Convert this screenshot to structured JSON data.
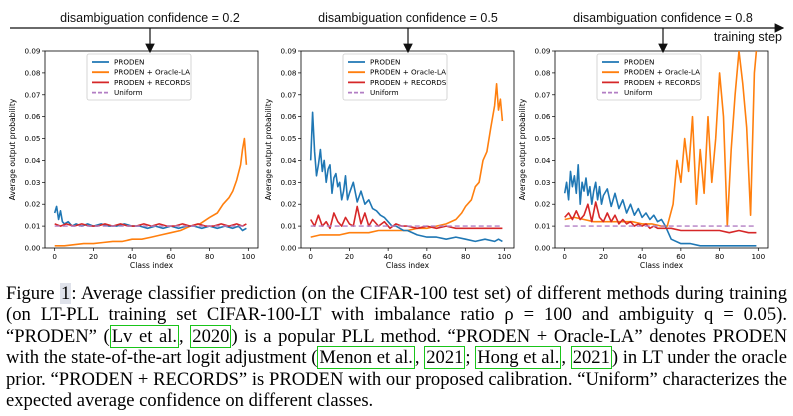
{
  "timeline": {
    "labels": [
      "disambiguation confidence = 0.2",
      "disambiguation confidence = 0.5",
      "disambiguation confidence = 0.8"
    ],
    "arrow_label": "training step"
  },
  "colors": {
    "proden": "#1f77b4",
    "oracle": "#ff7f0e",
    "records": "#d62728",
    "uniform": "#b27ec4"
  },
  "chart_data": [
    {
      "type": "line",
      "title": "",
      "xlabel": "Class index",
      "ylabel": "Average output probability",
      "xlim": [
        -5,
        105
      ],
      "ylim": [
        0,
        0.09
      ],
      "xticks": [
        0,
        20,
        40,
        60,
        80,
        100
      ],
      "yticks": [
        "0.00",
        "0.01",
        "0.02",
        "0.03",
        "0.04",
        "0.05",
        "0.06",
        "0.07",
        "0.08",
        "0.09"
      ],
      "legend": {
        "position": "top-center",
        "entries": [
          "PRODEN",
          "PRODEN + Oracle-LA",
          "PRODEN + RECORDS",
          "Uniform"
        ]
      },
      "series": [
        {
          "name": "PRODEN",
          "color": "#1f77b4",
          "x": [
            0,
            1,
            2,
            3,
            4,
            5,
            7,
            9,
            11,
            14,
            17,
            20,
            24,
            28,
            32,
            36,
            40,
            44,
            48,
            52,
            56,
            60,
            64,
            68,
            72,
            76,
            80,
            84,
            88,
            92,
            95,
            97,
            99
          ],
          "y": [
            0.016,
            0.019,
            0.013,
            0.017,
            0.012,
            0.011,
            0.012,
            0.01,
            0.011,
            0.01,
            0.011,
            0.01,
            0.011,
            0.01,
            0.01,
            0.011,
            0.01,
            0.01,
            0.009,
            0.01,
            0.009,
            0.01,
            0.009,
            0.01,
            0.01,
            0.009,
            0.01,
            0.009,
            0.01,
            0.009,
            0.01,
            0.008,
            0.009
          ]
        },
        {
          "name": "PRODEN + Oracle-LA",
          "color": "#ff7f0e",
          "x": [
            0,
            5,
            10,
            15,
            20,
            25,
            30,
            35,
            40,
            45,
            50,
            55,
            60,
            65,
            70,
            75,
            80,
            84,
            87,
            90,
            92,
            94,
            96,
            97,
            98,
            99
          ],
          "y": [
            0.001,
            0.001,
            0.0015,
            0.002,
            0.002,
            0.0025,
            0.003,
            0.003,
            0.004,
            0.004,
            0.005,
            0.006,
            0.007,
            0.008,
            0.01,
            0.011,
            0.014,
            0.016,
            0.02,
            0.023,
            0.026,
            0.031,
            0.038,
            0.045,
            0.05,
            0.038
          ]
        },
        {
          "name": "PRODEN + RECORDS",
          "color": "#d62728",
          "x": [
            0,
            3,
            6,
            10,
            14,
            18,
            22,
            26,
            30,
            34,
            38,
            42,
            46,
            50,
            54,
            58,
            62,
            66,
            70,
            74,
            78,
            82,
            86,
            90,
            94,
            97,
            99
          ],
          "y": [
            0.011,
            0.01,
            0.011,
            0.01,
            0.011,
            0.01,
            0.01,
            0.011,
            0.01,
            0.011,
            0.01,
            0.01,
            0.011,
            0.01,
            0.011,
            0.01,
            0.01,
            0.011,
            0.01,
            0.011,
            0.01,
            0.01,
            0.011,
            0.01,
            0.011,
            0.01,
            0.011
          ]
        },
        {
          "name": "Uniform",
          "color": "#b27ec4",
          "dashed": true,
          "x": [
            0,
            99
          ],
          "y": [
            0.01,
            0.01
          ]
        }
      ]
    },
    {
      "type": "line",
      "title": "",
      "xlabel": "Class index",
      "ylabel": "Average output probability",
      "xlim": [
        -5,
        105
      ],
      "ylim": [
        0,
        0.09
      ],
      "xticks": [
        0,
        20,
        40,
        60,
        80,
        100
      ],
      "yticks": [
        "0.00",
        "0.01",
        "0.02",
        "0.03",
        "0.04",
        "0.05",
        "0.06",
        "0.07",
        "0.08",
        "0.09"
      ],
      "legend": {
        "position": "top-center",
        "entries": [
          "PRODEN",
          "PRODEN + Oracle-LA",
          "PRODEN + RECORDS",
          "Uniform"
        ]
      },
      "series": [
        {
          "name": "PRODEN",
          "color": "#1f77b4",
          "x": [
            0,
            1,
            2,
            3,
            4,
            5,
            6,
            7,
            8,
            9,
            10,
            11,
            12,
            13,
            14,
            15,
            16,
            17,
            18,
            19,
            20,
            22,
            24,
            26,
            28,
            30,
            32,
            34,
            36,
            38,
            40,
            42,
            44,
            46,
            48,
            50,
            55,
            60,
            65,
            70,
            75,
            80,
            85,
            90,
            95,
            97,
            99
          ],
          "y": [
            0.04,
            0.062,
            0.044,
            0.033,
            0.038,
            0.045,
            0.035,
            0.04,
            0.03,
            0.036,
            0.038,
            0.025,
            0.032,
            0.034,
            0.028,
            0.03,
            0.022,
            0.026,
            0.033,
            0.022,
            0.025,
            0.03,
            0.021,
            0.026,
            0.02,
            0.022,
            0.018,
            0.017,
            0.015,
            0.014,
            0.012,
            0.01,
            0.01,
            0.009,
            0.008,
            0.008,
            0.006,
            0.005,
            0.005,
            0.004,
            0.005,
            0.004,
            0.003,
            0.004,
            0.003,
            0.004,
            0.003
          ]
        },
        {
          "name": "PRODEN + Oracle-LA",
          "color": "#ff7f0e",
          "x": [
            0,
            5,
            10,
            15,
            20,
            25,
            30,
            35,
            40,
            45,
            50,
            55,
            60,
            65,
            70,
            75,
            78,
            80,
            83,
            85,
            87,
            89,
            91,
            93,
            95,
            96,
            97,
            98,
            99
          ],
          "y": [
            0.005,
            0.006,
            0.006,
            0.006,
            0.007,
            0.007,
            0.007,
            0.008,
            0.008,
            0.008,
            0.008,
            0.009,
            0.009,
            0.01,
            0.011,
            0.013,
            0.016,
            0.019,
            0.022,
            0.028,
            0.03,
            0.04,
            0.044,
            0.055,
            0.065,
            0.075,
            0.063,
            0.068,
            0.058
          ]
        },
        {
          "name": "PRODEN + RECORDS",
          "color": "#d62728",
          "x": [
            0,
            2,
            4,
            6,
            8,
            10,
            12,
            14,
            16,
            18,
            20,
            22,
            24,
            26,
            28,
            30,
            32,
            35,
            38,
            41,
            44,
            47,
            50,
            55,
            60,
            65,
            70,
            75,
            80,
            85,
            90,
            95,
            99
          ],
          "y": [
            0.013,
            0.01,
            0.015,
            0.01,
            0.012,
            0.009,
            0.016,
            0.012,
            0.01,
            0.014,
            0.011,
            0.01,
            0.019,
            0.011,
            0.016,
            0.01,
            0.013,
            0.01,
            0.012,
            0.009,
            0.011,
            0.01,
            0.01,
            0.009,
            0.01,
            0.009,
            0.01,
            0.009,
            0.009,
            0.009,
            0.009,
            0.009,
            0.009
          ]
        },
        {
          "name": "Uniform",
          "color": "#b27ec4",
          "dashed": true,
          "x": [
            0,
            99
          ],
          "y": [
            0.01,
            0.01
          ]
        }
      ]
    },
    {
      "type": "line",
      "title": "",
      "xlabel": "Class index",
      "ylabel": "Average output probability",
      "xlim": [
        -5,
        105
      ],
      "ylim": [
        0,
        0.09
      ],
      "xticks": [
        0,
        20,
        40,
        60,
        80,
        100
      ],
      "yticks": [
        "0.00",
        "0.01",
        "0.02",
        "0.03",
        "0.04",
        "0.05",
        "0.06",
        "0.07",
        "0.08",
        "0.09"
      ],
      "legend": {
        "position": "top-center",
        "entries": [
          "PRODEN",
          "PRODEN + Oracle-LA",
          "PRODEN + RECORDS",
          "Uniform"
        ]
      },
      "series": [
        {
          "name": "PRODEN",
          "color": "#1f77b4",
          "x": [
            0,
            1,
            2,
            3,
            4,
            5,
            6,
            7,
            8,
            9,
            10,
            11,
            12,
            13,
            14,
            15,
            16,
            17,
            18,
            19,
            20,
            22,
            24,
            26,
            28,
            30,
            32,
            34,
            36,
            38,
            40,
            42,
            44,
            46,
            48,
            50,
            52,
            55,
            60,
            65,
            70,
            75,
            80,
            85,
            90,
            95,
            99
          ],
          "y": [
            0.025,
            0.03,
            0.022,
            0.035,
            0.028,
            0.033,
            0.025,
            0.038,
            0.02,
            0.03,
            0.026,
            0.032,
            0.024,
            0.028,
            0.02,
            0.026,
            0.03,
            0.022,
            0.028,
            0.02,
            0.024,
            0.027,
            0.019,
            0.025,
            0.018,
            0.022,
            0.016,
            0.02,
            0.015,
            0.018,
            0.014,
            0.016,
            0.013,
            0.015,
            0.012,
            0.013,
            0.01,
            0.004,
            0.002,
            0.002,
            0.001,
            0.001,
            0.001,
            0.001,
            0.001,
            0.001,
            0.001
          ]
        },
        {
          "name": "PRODEN + Oracle-LA",
          "color": "#ff7f0e",
          "x": [
            0,
            5,
            10,
            15,
            20,
            25,
            30,
            35,
            40,
            45,
            50,
            53,
            56,
            58,
            60,
            62,
            64,
            66,
            68,
            70,
            72,
            74,
            76,
            78,
            80,
            82,
            84,
            86,
            88,
            90,
            92,
            94,
            96,
            98,
            99
          ],
          "y": [
            0.013,
            0.014,
            0.013,
            0.012,
            0.012,
            0.012,
            0.012,
            0.012,
            0.011,
            0.011,
            0.01,
            0.01,
            0.02,
            0.04,
            0.03,
            0.05,
            0.035,
            0.06,
            0.02,
            0.045,
            0.025,
            0.06,
            0.03,
            0.05,
            0.08,
            0.06,
            0.01,
            0.045,
            0.07,
            0.09,
            0.075,
            0.055,
            0.015,
            0.08,
            0.09
          ]
        },
        {
          "name": "PRODEN + RECORDS",
          "color": "#d62728",
          "x": [
            0,
            2,
            4,
            6,
            8,
            10,
            12,
            14,
            16,
            18,
            20,
            22,
            24,
            26,
            28,
            30,
            32,
            34,
            36,
            38,
            40,
            42,
            44,
            46,
            48,
            50,
            55,
            60,
            65,
            70,
            75,
            80,
            85,
            90,
            95,
            99
          ],
          "y": [
            0.014,
            0.016,
            0.013,
            0.017,
            0.013,
            0.015,
            0.02,
            0.012,
            0.021,
            0.014,
            0.012,
            0.016,
            0.012,
            0.015,
            0.011,
            0.013,
            0.011,
            0.012,
            0.01,
            0.011,
            0.01,
            0.011,
            0.009,
            0.01,
            0.009,
            0.009,
            0.009,
            0.008,
            0.008,
            0.008,
            0.008,
            0.008,
            0.007,
            0.008,
            0.007,
            0.007
          ]
        },
        {
          "name": "Uniform",
          "color": "#b27ec4",
          "dashed": true,
          "x": [
            0,
            99
          ],
          "y": [
            0.01,
            0.01
          ]
        }
      ]
    }
  ],
  "caption": {
    "fig_prefix": "Figure ",
    "fig_num": "1",
    "part1": ": Average classifier prediction (on the CIFAR-100 test set) of different methods during training (on LT-PLL training set CIFAR-100-LT with imbalance ratio ρ = 100 and ambiguity q = 0.05). “PRODEN” (",
    "cite1a": "Lv et al.",
    "sep1": ", ",
    "cite1b": "2020",
    "part2": ") is a popular PLL method. “PRODEN + Oracle-LA” denotes PRODEN with the state-of-the-art logit adjustment (",
    "cite2a": "Menon et al.",
    "sep2": ", ",
    "cite2b": "2021",
    "sep3": "; ",
    "cite3a": "Hong et al.",
    "sep4": ", ",
    "cite3b": "2021",
    "part3": ") in LT under the oracle prior. “PRODEN + RECORDS” is PRODEN with our proposed calibration. “Uniform” characterizes the expected average confidence on different classes."
  }
}
